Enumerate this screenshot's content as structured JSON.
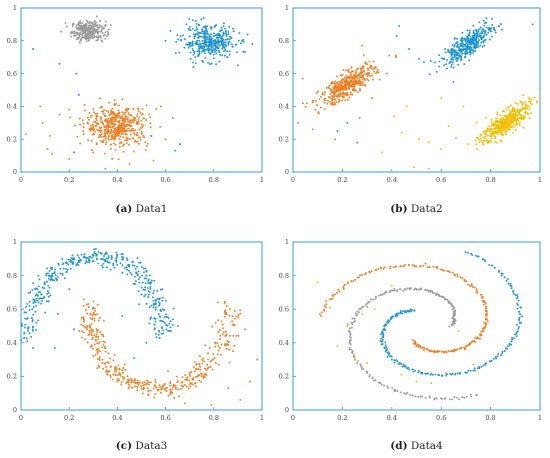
{
  "colors": {
    "gray": "#9b9b9b",
    "blue": "#1f94d2",
    "orange": "#f07f22",
    "yellow": "#f5bd00",
    "axis": "#3a9fd6"
  },
  "chart_data": [
    {
      "type": "scatter",
      "caption_letter": "(a)",
      "caption_text": "Data1",
      "xlim": [
        0,
        1
      ],
      "ylim": [
        0,
        1
      ],
      "xticks": [
        "0",
        "0.2",
        "0.4",
        "0.6",
        "0.8",
        "1"
      ],
      "yticks": [
        "0",
        "0.2",
        "0.4",
        "0.6",
        "0.8",
        "1"
      ],
      "clusters": [
        {
          "color": "gray",
          "kind": "gauss",
          "cx": 0.28,
          "cy": 0.86,
          "sx": 0.035,
          "sy": 0.03,
          "rho": 0,
          "n": 300
        },
        {
          "color": "blue",
          "kind": "gauss",
          "cx": 0.78,
          "cy": 0.79,
          "sx": 0.055,
          "sy": 0.05,
          "rho": 0,
          "n": 380
        },
        {
          "color": "orange",
          "kind": "gauss",
          "cx": 0.4,
          "cy": 0.28,
          "sx": 0.065,
          "sy": 0.06,
          "rho": 0,
          "n": 480
        }
      ],
      "outliers": [
        [
          0.05,
          0.75,
          "blue"
        ],
        [
          0.16,
          0.66,
          "blue"
        ],
        [
          0.23,
          0.6,
          "blue"
        ],
        [
          0.24,
          0.47,
          "blue"
        ],
        [
          0.62,
          0.86,
          "blue"
        ],
        [
          0.6,
          0.8,
          "blue"
        ],
        [
          0.66,
          0.17,
          "blue"
        ],
        [
          0.64,
          0.13,
          "blue"
        ],
        [
          0.54,
          0.22,
          "blue"
        ],
        [
          0.22,
          0.12,
          "blue"
        ],
        [
          0.96,
          0.78,
          "blue"
        ],
        [
          0.9,
          0.65,
          "blue"
        ],
        [
          0.08,
          0.4,
          "orange"
        ],
        [
          0.09,
          0.3,
          "orange"
        ],
        [
          0.12,
          0.22,
          "orange"
        ],
        [
          0.13,
          0.11,
          "orange"
        ],
        [
          0.2,
          0.08,
          "orange"
        ],
        [
          0.3,
          0.12,
          "orange"
        ],
        [
          0.16,
          0.35,
          "orange"
        ],
        [
          0.58,
          0.4,
          "orange"
        ],
        [
          0.63,
          0.33,
          "orange"
        ],
        [
          0.55,
          0.07,
          "orange"
        ],
        [
          0.35,
          0.02,
          "orange"
        ],
        [
          0.02,
          0.23,
          "orange"
        ],
        [
          0.2,
          0.38,
          "orange"
        ],
        [
          0.6,
          0.2,
          "orange"
        ],
        [
          0.11,
          0.14,
          "orange"
        ],
        [
          0.45,
          0.05,
          "orange"
        ]
      ]
    },
    {
      "type": "scatter",
      "caption_letter": "(b)",
      "caption_text": "Data2",
      "xlim": [
        0,
        1
      ],
      "ylim": [
        0,
        1
      ],
      "xticks": [
        "0",
        "0.2",
        "0.4",
        "0.6",
        "0.8",
        "1"
      ],
      "yticks": [
        "0",
        "0.2",
        "0.4",
        "0.6",
        "0.8",
        "1"
      ],
      "clusters": [
        {
          "color": "orange",
          "kind": "gauss",
          "cx": 0.22,
          "cy": 0.53,
          "sx": 0.055,
          "sy": 0.06,
          "rho": 0.78,
          "n": 420
        },
        {
          "color": "blue",
          "kind": "gauss",
          "cx": 0.71,
          "cy": 0.78,
          "sx": 0.05,
          "sy": 0.06,
          "rho": 0.8,
          "n": 380
        },
        {
          "color": "yellow",
          "kind": "gauss",
          "cx": 0.86,
          "cy": 0.3,
          "sx": 0.05,
          "sy": 0.06,
          "rho": 0.8,
          "n": 400
        }
      ],
      "outliers": [
        [
          0.28,
          0.77,
          "orange"
        ],
        [
          0.39,
          0.71,
          "orange"
        ],
        [
          0.38,
          0.6,
          "orange"
        ],
        [
          0.04,
          0.57,
          "orange"
        ],
        [
          0.04,
          0.42,
          "orange"
        ],
        [
          0.09,
          0.38,
          "orange"
        ],
        [
          0.08,
          0.26,
          "orange"
        ],
        [
          0.17,
          0.2,
          "orange"
        ],
        [
          0.27,
          0.33,
          "orange"
        ],
        [
          0.32,
          0.45,
          "orange"
        ],
        [
          0.02,
          0.3,
          "orange"
        ],
        [
          0.43,
          0.89,
          "blue"
        ],
        [
          0.42,
          0.83,
          "blue"
        ],
        [
          0.47,
          0.75,
          "blue"
        ],
        [
          0.51,
          0.69,
          "blue"
        ],
        [
          0.53,
          0.67,
          "blue"
        ],
        [
          0.22,
          0.3,
          "blue"
        ],
        [
          0.18,
          0.25,
          "blue"
        ],
        [
          0.26,
          0.18,
          "blue"
        ],
        [
          0.65,
          0.55,
          "blue"
        ],
        [
          0.97,
          0.9,
          "blue"
        ],
        [
          0.41,
          0.34,
          "yellow"
        ],
        [
          0.44,
          0.24,
          "yellow"
        ],
        [
          0.51,
          0.2,
          "yellow"
        ],
        [
          0.55,
          0.18,
          "yellow"
        ],
        [
          0.6,
          0.14,
          "yellow"
        ],
        [
          0.66,
          0.21,
          "yellow"
        ],
        [
          0.71,
          0.17,
          "yellow"
        ],
        [
          0.69,
          0.4,
          "yellow"
        ],
        [
          0.6,
          0.45,
          "yellow"
        ],
        [
          0.46,
          0.4,
          "yellow"
        ],
        [
          0.49,
          0.03,
          "yellow"
        ],
        [
          0.55,
          0.02,
          "yellow"
        ],
        [
          0.63,
          0.28,
          "yellow"
        ],
        [
          0.36,
          0.12,
          "yellow"
        ]
      ]
    },
    {
      "type": "scatter",
      "caption_letter": "(c)",
      "caption_text": "Data3",
      "xlim": [
        0,
        1
      ],
      "ylim": [
        0,
        1
      ],
      "xticks": [
        "0",
        "0.2",
        "0.4",
        "0.6",
        "0.8",
        "1"
      ],
      "yticks": [
        "0",
        "0.2",
        "0.4",
        "0.6",
        "0.8",
        "1"
      ],
      "clusters": [
        {
          "color": "blue",
          "kind": "arc",
          "cx": 0.31,
          "cy": 0.44,
          "rx": 0.28,
          "ry": 0.47,
          "t0": 0.0,
          "t1": 3.1416,
          "jitter": 0.025,
          "n": 420
        },
        {
          "color": "orange",
          "kind": "arc",
          "cx": 0.57,
          "cy": 0.63,
          "rx": 0.29,
          "ry": 0.51,
          "t0": 3.1416,
          "t1": 6.2832,
          "jitter": 0.025,
          "n": 420
        }
      ],
      "outliers": [
        [
          0.1,
          0.58,
          "blue"
        ],
        [
          0.22,
          0.48,
          "blue"
        ],
        [
          0.3,
          0.61,
          "blue"
        ],
        [
          0.42,
          0.56,
          "blue"
        ],
        [
          0.49,
          0.63,
          "blue"
        ],
        [
          0.52,
          0.4,
          "blue"
        ],
        [
          0.47,
          0.31,
          "blue"
        ],
        [
          0.14,
          0.37,
          "blue"
        ],
        [
          0.61,
          0.47,
          "blue"
        ],
        [
          0.05,
          0.37,
          "blue"
        ],
        [
          0.2,
          0.72,
          "blue"
        ],
        [
          0.93,
          0.48,
          "orange"
        ],
        [
          0.98,
          0.3,
          "orange"
        ],
        [
          0.95,
          0.17,
          "orange"
        ],
        [
          0.86,
          0.13,
          "orange"
        ],
        [
          0.79,
          0.03,
          "orange"
        ],
        [
          0.68,
          0.04,
          "orange"
        ],
        [
          0.61,
          0.23,
          "orange"
        ],
        [
          0.3,
          0.32,
          "orange"
        ],
        [
          0.88,
          0.35,
          "orange"
        ],
        [
          0.76,
          0.29,
          "orange"
        ],
        [
          0.91,
          0.06,
          "orange"
        ]
      ]
    },
    {
      "type": "scatter",
      "caption_letter": "(d)",
      "caption_text": "Data4",
      "xlim": [
        0,
        1
      ],
      "ylim": [
        0,
        1
      ],
      "xticks": [
        "0",
        "0.2",
        "0.4",
        "0.6",
        "0.8",
        "1"
      ],
      "yticks": [
        "0",
        "0.2",
        "0.4",
        "0.6",
        "0.8",
        "1"
      ],
      "clusters": [
        {
          "color": "gray",
          "kind": "spiral",
          "cx": 0.54,
          "cy": 0.5,
          "a0": 0.0,
          "r0": 0.1,
          "k": 0.065,
          "t0": 0.0,
          "t1": 5.2,
          "n": 220,
          "jitter": 0.004
        },
        {
          "color": "blue",
          "kind": "spiral",
          "cx": 0.54,
          "cy": 0.5,
          "a0": 2.094,
          "r0": 0.1,
          "k": 0.065,
          "t0": 0.0,
          "t1": 5.4,
          "n": 230,
          "jitter": 0.004
        },
        {
          "color": "orange",
          "kind": "spiral",
          "cx": 0.54,
          "cy": 0.5,
          "a0": 4.189,
          "r0": 0.1,
          "k": 0.065,
          "t0": 0.0,
          "t1": 5.1,
          "n": 220,
          "jitter": 0.004
        }
      ],
      "outliers": [
        [
          0.1,
          0.76,
          "yellow"
        ],
        [
          0.15,
          0.61,
          "yellow"
        ],
        [
          0.22,
          0.5,
          "yellow"
        ],
        [
          0.18,
          0.38,
          "yellow"
        ],
        [
          0.25,
          0.31,
          "yellow"
        ],
        [
          0.33,
          0.6,
          "yellow"
        ],
        [
          0.36,
          0.4,
          "yellow"
        ],
        [
          0.4,
          0.74,
          "yellow"
        ],
        [
          0.44,
          0.21,
          "yellow"
        ],
        [
          0.5,
          0.17,
          "yellow"
        ],
        [
          0.56,
          0.16,
          "yellow"
        ],
        [
          0.62,
          0.22,
          "yellow"
        ],
        [
          0.67,
          0.47,
          "yellow"
        ],
        [
          0.73,
          0.27,
          "yellow"
        ],
        [
          0.3,
          0.28,
          "yellow"
        ],
        [
          0.28,
          0.57,
          "yellow"
        ]
      ]
    }
  ]
}
